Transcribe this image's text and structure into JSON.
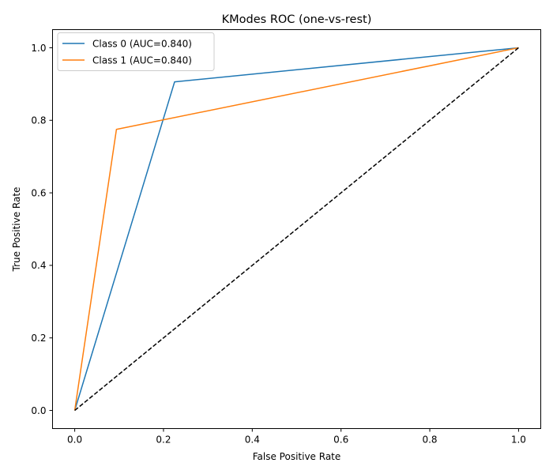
{
  "chart_data": {
    "type": "line",
    "title": "KModes ROC (one-vs-rest)",
    "xlabel": "False Positive Rate",
    "ylabel": "True Positive Rate",
    "xlim": [
      -0.05,
      1.05
    ],
    "ylim": [
      -0.05,
      1.05
    ],
    "xticks": [
      "0.0",
      "0.2",
      "0.4",
      "0.6",
      "0.8",
      "1.0"
    ],
    "yticks": [
      "0.0",
      "0.2",
      "0.4",
      "0.6",
      "0.8",
      "1.0"
    ],
    "grid": false,
    "legend_position": "top-left",
    "series": [
      {
        "name": "Class 0 (AUC=0.840)",
        "color": "#1f77b4",
        "x": [
          0.0,
          0.225,
          1.0
        ],
        "y": [
          0.0,
          0.906,
          1.0
        ]
      },
      {
        "name": "Class 1 (AUC=0.840)",
        "color": "#ff7f0e",
        "x": [
          0.0,
          0.094,
          1.0
        ],
        "y": [
          0.0,
          0.775,
          1.0
        ]
      }
    ],
    "reference_line": {
      "x": [
        0.0,
        1.0
      ],
      "y": [
        0.0,
        1.0
      ],
      "color": "#000000",
      "style": "dashed"
    }
  }
}
